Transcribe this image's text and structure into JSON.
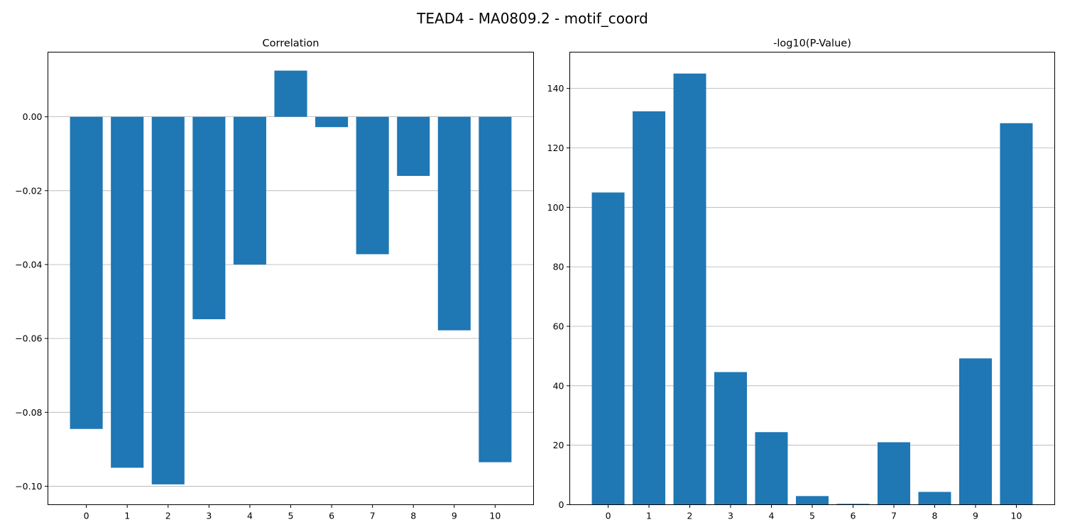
{
  "figure": {
    "title": "TEAD4 - MA0809.2 - motif_coord"
  },
  "colors": {
    "bar": "#1f77b4",
    "grid": "#b0b0b0",
    "axis": "#000000"
  },
  "chart_data": [
    {
      "type": "bar",
      "title": "Correlation",
      "xlabel": "",
      "ylabel": "",
      "categories": [
        "0",
        "1",
        "2",
        "3",
        "4",
        "5",
        "6",
        "7",
        "8",
        "9",
        "10"
      ],
      "values": [
        -0.0845,
        -0.095,
        -0.0995,
        -0.0548,
        -0.04,
        0.0125,
        -0.0028,
        -0.0372,
        -0.016,
        -0.0578,
        -0.0935
      ],
      "ylim": [
        -0.105,
        0.0175
      ],
      "yticks": [
        0.0,
        -0.02,
        -0.04,
        -0.06,
        -0.08,
        -0.1
      ],
      "ytick_labels": [
        "0.00",
        "−0.02",
        "−0.04",
        "−0.06",
        "−0.08",
        "−0.10"
      ],
      "grid": "y"
    },
    {
      "type": "bar",
      "title": "-log10(P-Value)",
      "xlabel": "",
      "ylabel": "",
      "categories": [
        "0",
        "1",
        "2",
        "3",
        "4",
        "5",
        "6",
        "7",
        "8",
        "9",
        "10"
      ],
      "values": [
        105.0,
        132.3,
        145.0,
        44.6,
        24.4,
        2.9,
        0.3,
        21.0,
        4.3,
        49.2,
        128.3
      ],
      "ylim": [
        0,
        152.2
      ],
      "yticks": [
        0,
        20,
        40,
        60,
        80,
        100,
        120,
        140
      ],
      "ytick_labels": [
        "0",
        "20",
        "40",
        "60",
        "80",
        "100",
        "120",
        "140"
      ],
      "grid": "y"
    }
  ]
}
